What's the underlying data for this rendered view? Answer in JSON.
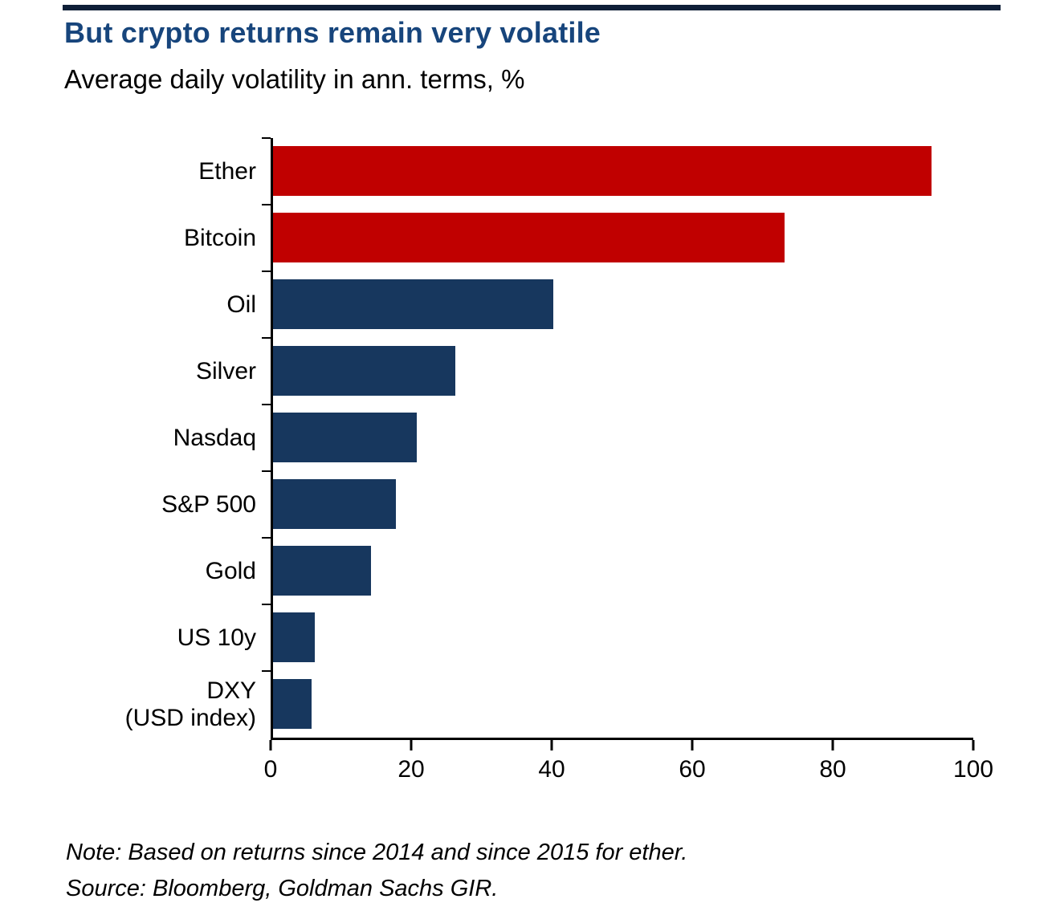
{
  "colors": {
    "red": "#c00000",
    "navy": "#17375e",
    "title": "#17457c",
    "rule": "#0f1f38"
  },
  "header": {
    "title": "But crypto returns remain very volatile",
    "subtitle": "Average daily volatility in ann. terms, %"
  },
  "chart_data": {
    "type": "bar",
    "orientation": "horizontal",
    "title": "But crypto returns remain very volatile",
    "subtitle": "Average daily volatility in ann. terms, %",
    "categories": [
      "Ether",
      "Bitcoin",
      "Oil",
      "Silver",
      "Nasdaq",
      "S&P 500",
      "Gold",
      "US 10y",
      "DXY\n(USD index)"
    ],
    "values": [
      94,
      73,
      40,
      26,
      20.5,
      17.5,
      14,
      6,
      5.5
    ],
    "bar_colors": [
      "#c00000",
      "#c00000",
      "#17375e",
      "#17375e",
      "#17375e",
      "#17375e",
      "#17375e",
      "#17375e",
      "#17375e"
    ],
    "xlim": [
      0,
      100
    ],
    "x_ticks": [
      0,
      20,
      40,
      60,
      80,
      100
    ],
    "xlabel": "",
    "ylabel": "",
    "grid": false,
    "legend": false
  },
  "footer": {
    "note": "Note: Based on returns since 2014 and since 2015 for ether.",
    "source": "Source: Bloomberg, Goldman Sachs GIR."
  }
}
